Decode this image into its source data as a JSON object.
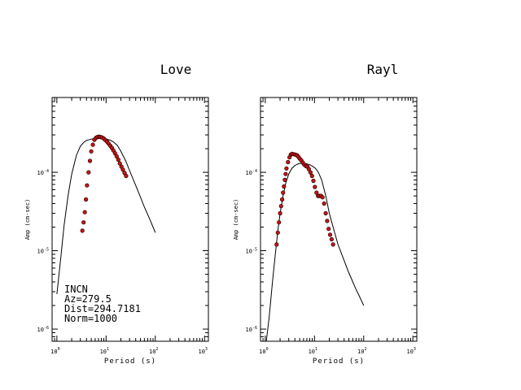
{
  "figure": {
    "station": "INCN",
    "azimuth_text": "Az=279.5",
    "distance_text": "Dist=294.7181",
    "norm_text": "Norm=1000"
  },
  "chart_data": [
    {
      "type": "line",
      "title": "Love",
      "xlabel": "Period (s)",
      "ylabel": "Amp (cm-sec)",
      "xscale": "log",
      "yscale": "log",
      "xlim": [
        0.8,
        1200
      ],
      "ylim": [
        7e-07,
        0.0009
      ],
      "x_ticks": [
        {
          "value": 1,
          "base": "10",
          "exp": "0"
        },
        {
          "value": 10,
          "base": "10",
          "exp": "1"
        },
        {
          "value": 100,
          "base": "10",
          "exp": "2"
        },
        {
          "value": 1000,
          "base": "10",
          "exp": "3"
        }
      ],
      "y_ticks": [
        {
          "value": 0.0001,
          "base": "10",
          "exp": "-4"
        },
        {
          "value": 1e-05,
          "base": "10",
          "exp": "-5"
        },
        {
          "value": 1e-06,
          "base": "10",
          "exp": "-6"
        }
      ],
      "series": [
        {
          "kind": "model_line",
          "color": "#000000",
          "x": [
            1.0,
            1.2,
            1.4,
            1.7,
            2.0,
            2.5,
            3.0,
            3.5,
            4.0,
            5.0,
            6.0,
            7.0,
            8.0,
            10.0,
            12.0,
            14.0,
            17.0,
            20.0,
            25.0,
            30.0,
            40.0,
            50.0,
            60.0,
            70.0,
            80.0,
            90.0,
            100.0
          ],
          "y": [
            2.8e-06,
            8e-06,
            2.1e-05,
            5.2e-05,
            9.5e-05,
            0.000165,
            0.000215,
            0.00024,
            0.000255,
            0.000265,
            0.00027,
            0.00027,
            0.00027,
            0.000265,
            0.000258,
            0.000245,
            0.00022,
            0.000185,
            0.00014,
            0.000105,
            6.8e-05,
            4.8e-05,
            3.6e-05,
            2.9e-05,
            2.4e-05,
            2e-05,
            1.7e-05
          ]
        },
        {
          "kind": "observed_points",
          "color": "#cc1111",
          "x": [
            3.3,
            3.5,
            3.7,
            3.9,
            4.1,
            4.4,
            4.7,
            5.0,
            5.4,
            5.8,
            6.2,
            6.7,
            7.2,
            7.7,
            8.3,
            9.0,
            9.7,
            10.5,
            11.3,
            12.2,
            13.1,
            14.1,
            15.2,
            16.4,
            17.7,
            19.0,
            20.5,
            22.0,
            23.7,
            25.5
          ],
          "y": [
            1.8e-05,
            2.3e-05,
            3.1e-05,
            4.5e-05,
            6.8e-05,
            0.0001,
            0.00014,
            0.000185,
            0.000225,
            0.00026,
            0.000275,
            0.000282,
            0.000285,
            0.000282,
            0.000278,
            0.00027,
            0.000258,
            0.000245,
            0.000232,
            0.000218,
            0.000205,
            0.00019,
            0.000175,
            0.00016,
            0.000145,
            0.00013,
            0.000118,
            0.000108,
            9.8e-05,
            9e-05
          ]
        }
      ]
    },
    {
      "type": "line",
      "title": "Rayl",
      "xlabel": "Period (s)",
      "ylabel": "Amp (cm-sec)",
      "xscale": "log",
      "yscale": "log",
      "xlim": [
        0.8,
        1200
      ],
      "ylim": [
        7e-07,
        0.0009
      ],
      "x_ticks": [
        {
          "value": 1,
          "base": "10",
          "exp": "0"
        },
        {
          "value": 10,
          "base": "10",
          "exp": "1"
        },
        {
          "value": 100,
          "base": "10",
          "exp": "2"
        },
        {
          "value": 1000,
          "base": "10",
          "exp": "3"
        }
      ],
      "y_ticks": [
        {
          "value": 0.0001,
          "base": "10",
          "exp": "-4"
        },
        {
          "value": 1e-05,
          "base": "10",
          "exp": "-5"
        },
        {
          "value": 1e-06,
          "base": "10",
          "exp": "-6"
        }
      ],
      "series": [
        {
          "kind": "model_line",
          "color": "#000000",
          "x": [
            1.05,
            1.2,
            1.4,
            1.6,
            1.8,
            2.0,
            2.3,
            2.6,
            3.0,
            3.5,
            4.0,
            4.5,
            5.0,
            6.0,
            7.0,
            8.0,
            9.0,
            10.0,
            11.0,
            12.0,
            14.0,
            17.0,
            20.0,
            25.0,
            30.0,
            40.0,
            50.0,
            60.0,
            70.0,
            80.0,
            90.0,
            100.0
          ],
          "y": [
            6e-07,
            1.4e-06,
            4e-06,
            9e-06,
            1.8e-05,
            3e-05,
            5e-05,
            7.2e-05,
            9.5e-05,
            0.000113,
            0.000122,
            0.000127,
            0.00013,
            0.00013,
            0.000128,
            0.000125,
            0.00012,
            0.000115,
            0.000108,
            0.0001,
            8e-05,
            5e-05,
            3e-05,
            1.8e-05,
            1.2e-05,
            7.5e-06,
            5.2e-06,
            4e-06,
            3.2e-06,
            2.7e-06,
            2.3e-06,
            2e-06
          ]
        },
        {
          "kind": "observed_points",
          "color": "#cc1111",
          "x": [
            1.7,
            1.8,
            1.9,
            2.0,
            2.1,
            2.2,
            2.3,
            2.4,
            2.5,
            2.6,
            2.7,
            2.9,
            3.1,
            3.3,
            3.5,
            3.8,
            4.1,
            4.4,
            4.7,
            5.0,
            5.4,
            5.8,
            6.2,
            6.7,
            7.2,
            7.7,
            8.3,
            8.9,
            9.5,
            10.2,
            11.0,
            11.8,
            12.7,
            13.6,
            14.6,
            15.7,
            16.9,
            18.1,
            19.4,
            20.8,
            22.3,
            23.9
          ],
          "y": [
            1.2e-05,
            1.7e-05,
            2.3e-05,
            3e-05,
            3.7e-05,
            4.5e-05,
            5.5e-05,
            6.6e-05,
            8e-05,
            9.5e-05,
            0.000112,
            0.000135,
            0.000155,
            0.000168,
            0.000172,
            0.00017,
            0.000168,
            0.000165,
            0.000158,
            0.00015,
            0.000142,
            0.000133,
            0.000125,
            0.00012,
            0.000118,
            0.00011,
            0.0001,
            9e-05,
            7.8e-05,
            6.5e-05,
            5.5e-05,
            5e-05,
            5e-05,
            5e-05,
            4.8e-05,
            4e-05,
            3e-05,
            2.4e-05,
            1.9e-05,
            1.6e-05,
            1.4e-05,
            1.2e-05
          ]
        }
      ]
    }
  ]
}
